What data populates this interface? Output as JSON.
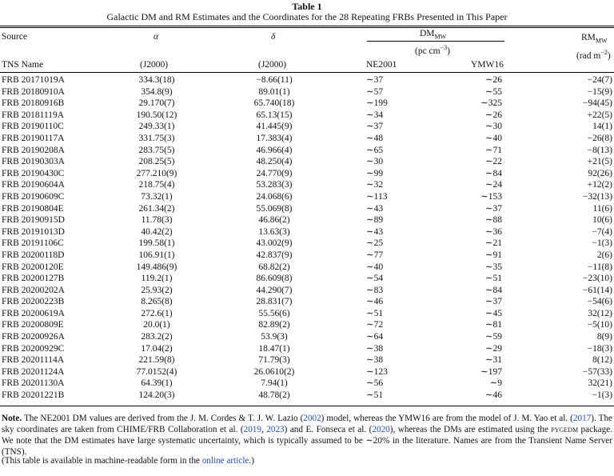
{
  "caption": {
    "label": "Table 1",
    "title": "Galactic DM and RM Estimates and the Coordinates for the 28 Repeating FRBs Presented in This Paper"
  },
  "headers": {
    "source": "Source",
    "alpha": "α",
    "delta": "δ",
    "dm": "DM",
    "dm_sub": "MW",
    "dm_unit": "(pc cm",
    "dm_unit_exp": "−3",
    "rm": "RM",
    "rm_sub": "MW",
    "rm_unit": "(rad m",
    "rm_unit_exp": "−2",
    "tns_name": "TNS Name",
    "alpha_epoch": "(J2000)",
    "delta_epoch": "(J2000)",
    "ne2001": "NE2001",
    "ymw16": "YMW16"
  },
  "rows": [
    {
      "name": "FRB 20171019A",
      "ra": "334.3(18)",
      "dec": "−8.66(11)",
      "ne2001": "∼37",
      "ymw16": "∼26",
      "rm": "−24(7)"
    },
    {
      "name": "FRB 20180910A",
      "ra": "354.8(9)",
      "dec": "89.01(1)",
      "ne2001": "∼57",
      "ymw16": "∼55",
      "rm": "−15(9)"
    },
    {
      "name": "FRB 20180916B",
      "ra": "29.170(7)",
      "dec": "65.740(18)",
      "ne2001": "∼199",
      "ymw16": "∼325",
      "rm": "−94(45)"
    },
    {
      "name": "FRB 20181119A",
      "ra": "190.50(12)",
      "dec": "65.13(15)",
      "ne2001": "∼34",
      "ymw16": "∼26",
      "rm": "+22(5)"
    },
    {
      "name": "FRB 20190110C",
      "ra": "249.33(1)",
      "dec": "41.445(9)",
      "ne2001": "∼37",
      "ymw16": "∼30",
      "rm": "14(1)"
    },
    {
      "name": "FRB 20190117A",
      "ra": "331.75(3)",
      "dec": "17.383(4)",
      "ne2001": "∼48",
      "ymw16": "∼40",
      "rm": "−26(8)"
    },
    {
      "name": "FRB 20190208A",
      "ra": "283.75(5)",
      "dec": "46.966(4)",
      "ne2001": "∼65",
      "ymw16": "∼71",
      "rm": "−8(13)"
    },
    {
      "name": "FRB 20190303A",
      "ra": "208.25(5)",
      "dec": "48.250(4)",
      "ne2001": "∼30",
      "ymw16": "∼22",
      "rm": "+21(5)"
    },
    {
      "name": "FRB 20190430C",
      "ra": "277.210(9)",
      "dec": "24.770(9)",
      "ne2001": "∼99",
      "ymw16": "∼84",
      "rm": "92(26)"
    },
    {
      "name": "FRB 20190604A",
      "ra": "218.75(4)",
      "dec": "53.283(3)",
      "ne2001": "∼32",
      "ymw16": "∼24",
      "rm": "+12(2)"
    },
    {
      "name": "FRB 20190609C",
      "ra": "73.32(1)",
      "dec": "24.068(6)",
      "ne2001": "∼113",
      "ymw16": "∼153",
      "rm": "−32(13)"
    },
    {
      "name": "FRB 20190804E",
      "ra": "261.34(2)",
      "dec": "55.069(8)",
      "ne2001": "∼43",
      "ymw16": "∼37",
      "rm": "11(6)"
    },
    {
      "name": "FRB 20190915D",
      "ra": "11.78(3)",
      "dec": "46.86(2)",
      "ne2001": "∼89",
      "ymw16": "∼88",
      "rm": "10(6)"
    },
    {
      "name": "FRB 20191013D",
      "ra": "40.42(2)",
      "dec": "13.63(3)",
      "ne2001": "∼43",
      "ymw16": "∼36",
      "rm": "−7(4)"
    },
    {
      "name": "FRB 20191106C",
      "ra": "199.58(1)",
      "dec": "43.002(9)",
      "ne2001": "∼25",
      "ymw16": "∼21",
      "rm": "−1(3)"
    },
    {
      "name": "FRB 20200118D",
      "ra": "106.91(1)",
      "dec": "42.837(9)",
      "ne2001": "∼77",
      "ymw16": "∼91",
      "rm": "2(6)"
    },
    {
      "name": "FRB 20200120E",
      "ra": "149.486(9)",
      "dec": "68.82(2)",
      "ne2001": "∼40",
      "ymw16": "∼35",
      "rm": "−11(8)"
    },
    {
      "name": "FRB 20200127B",
      "ra": "119.2(1)",
      "dec": "86.609(8)",
      "ne2001": "∼54",
      "ymw16": "∼51",
      "rm": "−23(10)"
    },
    {
      "name": "FRB 20200202A",
      "ra": "25.93(2)",
      "dec": "44.290(7)",
      "ne2001": "∼83",
      "ymw16": "∼84",
      "rm": "−61(14)"
    },
    {
      "name": "FRB 20200223B",
      "ra": "8.265(8)",
      "dec": "28.831(7)",
      "ne2001": "∼46",
      "ymw16": "∼37",
      "rm": "−54(6)"
    },
    {
      "name": "FRB 20200619A",
      "ra": "272.6(1)",
      "dec": "55.56(6)",
      "ne2001": "∼51",
      "ymw16": "∼45",
      "rm": "32(12)"
    },
    {
      "name": "FRB 20200809E",
      "ra": "20.0(1)",
      "dec": "82.89(2)",
      "ne2001": "∼72",
      "ymw16": "∼81",
      "rm": "−5(10)"
    },
    {
      "name": "FRB 20200926A",
      "ra": "283.2(2)",
      "dec": "53.9(3)",
      "ne2001": "∼64",
      "ymw16": "∼59",
      "rm": "8(9)"
    },
    {
      "name": "FRB 20200929C",
      "ra": "17.04(2)",
      "dec": "18.47(1)",
      "ne2001": "∼38",
      "ymw16": "∼29",
      "rm": "−18(3)"
    },
    {
      "name": "FRB 20201114A",
      "ra": "221.59(8)",
      "dec": "71.79(3)",
      "ne2001": "∼38",
      "ymw16": "∼31",
      "rm": "8(12)"
    },
    {
      "name": "FRB 20201124A",
      "ra": "77.0152(4)",
      "dec": "26.0610(2)",
      "ne2001": "∼123",
      "ymw16": "∼197",
      "rm": "−57(33)"
    },
    {
      "name": "FRB 20201130A",
      "ra": "64.39(1)",
      "dec": "7.94(1)",
      "ne2001": "∼56",
      "ymw16": "∼9",
      "rm": "32(21)"
    },
    {
      "name": "FRB 20201221B",
      "ra": "124.20(3)",
      "dec": "48.78(2)",
      "ne2001": "∼51",
      "ymw16": "∼46",
      "rm": "−1(3)"
    }
  ],
  "note": {
    "label": "Note.",
    "t1": " The NE2001 DM values are derived from the J. M. Cordes & T. J. W. Lazio (",
    "l1": "2002",
    "t2": ") model, whereas the YMW16 are from the model of J. M. Yao et al. (",
    "l2": "2017",
    "t3": "). The sky coordinates are taken from CHIME/FRB Collaboration et al. (",
    "l3": "2019",
    "t4": ", ",
    "l4": "2023",
    "t5": ") and E. Fonseca et al. (",
    "l5": "2020",
    "t6": "), whereas the DMs are estimated using the ",
    "pkg": "pygedm",
    "t7": " package. We note that the DM estimates have large systematic uncertainty, which is typically assumed to be ∼20% in the literature. Names are from the Transient Name Server (TNS)."
  },
  "availability": {
    "t1": "(This table is available in machine-readable form in the ",
    "link": "online article",
    "t2": ".)"
  }
}
